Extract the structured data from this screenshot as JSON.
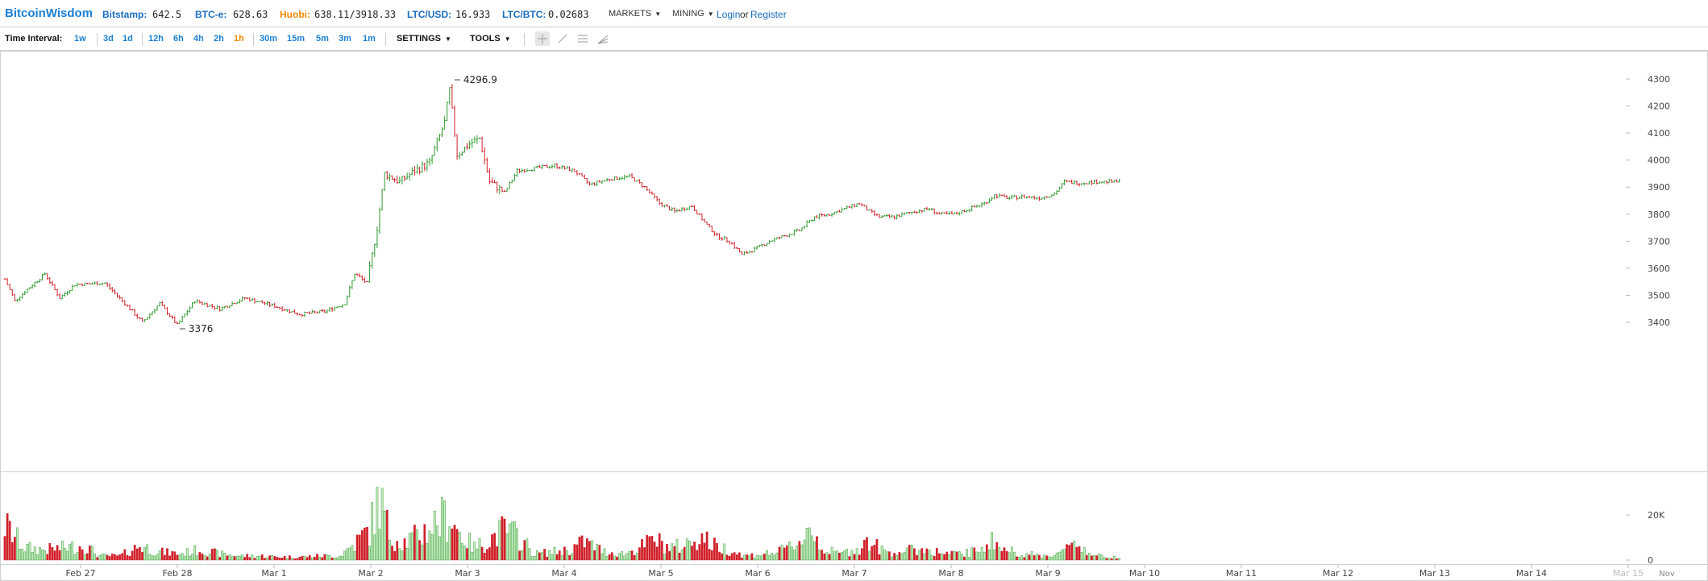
{
  "header": {
    "brand": "BitcoinWisdom",
    "tickers": [
      {
        "label": "Bitstamp:",
        "value": "642.5",
        "color": "#1a6dc0"
      },
      {
        "label": "BTC-e:",
        "value": "628.63",
        "color": "#1a6dc0"
      },
      {
        "label": "Huobi:",
        "value": "638.11/3918.33",
        "color": "#f08a00"
      },
      {
        "label": "LTC/USD:",
        "value": "16.933",
        "color": "#1a6dc0"
      },
      {
        "label": "LTC/BTC:",
        "value": "0.02683",
        "color": "#1a6dc0"
      }
    ],
    "menus": [
      "MARKETS",
      "MINING"
    ],
    "login": "Login",
    "or": "or",
    "register": "Register"
  },
  "toolbar": {
    "label": "Time Interval:",
    "intervals": [
      "1w",
      "3d",
      "1d",
      "12h",
      "6h",
      "4h",
      "2h",
      "1h",
      "30m",
      "15m",
      "5m",
      "3m",
      "1m"
    ],
    "active_interval": "1h",
    "settings": "SETTINGS",
    "tools": "TOOLS",
    "tool_icons": [
      "crosshair-icon",
      "line-tool-icon",
      "parallel-lines-icon",
      "fan-tool-icon"
    ]
  },
  "chart_data": {
    "type": "candlestick",
    "y_ticks": [
      "4300",
      "4200",
      "4100",
      "4000",
      "3900",
      "3800",
      "3700",
      "3600",
      "3500",
      "3400"
    ],
    "ylim": [
      3300,
      4330
    ],
    "volume_ticks": [
      "20K",
      "0"
    ],
    "volume_max": 36000,
    "x_labels": [
      "Feb 27",
      "Feb 28",
      "Mar 1",
      "Mar 2",
      "Mar 3",
      "Mar 4",
      "Mar 5",
      "Mar 6",
      "Mar 7",
      "Mar 8",
      "Mar 9",
      "Mar 10",
      "Mar 11",
      "Mar 12",
      "Mar 13",
      "Mar 14",
      "Mar 15"
    ],
    "x_label_extra": "Nov",
    "high_label": "4296.9",
    "low_label": "3376",
    "anchors": [
      [
        0,
        3560
      ],
      [
        4,
        3480
      ],
      [
        10,
        3530
      ],
      [
        16,
        3580
      ],
      [
        22,
        3490
      ],
      [
        28,
        3540
      ],
      [
        40,
        3545
      ],
      [
        48,
        3470
      ],
      [
        55,
        3400
      ],
      [
        62,
        3470
      ],
      [
        69,
        3390
      ],
      [
        76,
        3480
      ],
      [
        86,
        3450
      ],
      [
        96,
        3490
      ],
      [
        108,
        3460
      ],
      [
        118,
        3430
      ],
      [
        128,
        3440
      ],
      [
        136,
        3470
      ],
      [
        140,
        3580
      ],
      [
        145,
        3545
      ],
      [
        149,
        3750
      ],
      [
        152,
        3950
      ],
      [
        158,
        3920
      ],
      [
        164,
        3960
      ],
      [
        170,
        3990
      ],
      [
        176,
        4140
      ],
      [
        178,
        4260
      ],
      [
        181,
        4020
      ],
      [
        186,
        4060
      ],
      [
        190,
        4080
      ],
      [
        194,
        3920
      ],
      [
        200,
        3880
      ],
      [
        205,
        3960
      ],
      [
        212,
        3970
      ],
      [
        220,
        3980
      ],
      [
        228,
        3960
      ],
      [
        234,
        3910
      ],
      [
        242,
        3930
      ],
      [
        250,
        3940
      ],
      [
        256,
        3900
      ],
      [
        262,
        3840
      ],
      [
        268,
        3810
      ],
      [
        275,
        3830
      ],
      [
        280,
        3770
      ],
      [
        285,
        3720
      ],
      [
        290,
        3700
      ],
      [
        295,
        3650
      ],
      [
        300,
        3670
      ],
      [
        306,
        3700
      ],
      [
        312,
        3720
      ],
      [
        318,
        3740
      ],
      [
        324,
        3790
      ],
      [
        330,
        3800
      ],
      [
        336,
        3820
      ],
      [
        342,
        3840
      ],
      [
        346,
        3810
      ],
      [
        350,
        3790
      ],
      [
        356,
        3790
      ],
      [
        364,
        3810
      ],
      [
        370,
        3820
      ],
      [
        374,
        3800
      ],
      [
        380,
        3800
      ],
      [
        386,
        3820
      ],
      [
        392,
        3840
      ],
      [
        396,
        3870
      ],
      [
        402,
        3860
      ],
      [
        408,
        3865
      ],
      [
        414,
        3860
      ],
      [
        420,
        3875
      ],
      [
        424,
        3920
      ],
      [
        430,
        3915
      ],
      [
        436,
        3920
      ],
      [
        446,
        3920
      ]
    ],
    "volume_anchors": [
      [
        0,
        17000
      ],
      [
        8,
        6000
      ],
      [
        16,
        5000
      ],
      [
        24,
        6000
      ],
      [
        32,
        7000
      ],
      [
        38,
        2000
      ],
      [
        46,
        2000
      ],
      [
        54,
        7000
      ],
      [
        62,
        4000
      ],
      [
        70,
        3000
      ],
      [
        78,
        5000
      ],
      [
        86,
        3000
      ],
      [
        94,
        2000
      ],
      [
        102,
        2000
      ],
      [
        110,
        1500
      ],
      [
        118,
        1500
      ],
      [
        126,
        2000
      ],
      [
        134,
        2000
      ],
      [
        140,
        8000
      ],
      [
        146,
        15000
      ],
      [
        150,
        30000
      ],
      [
        154,
        12000
      ],
      [
        160,
        9000
      ],
      [
        166,
        12000
      ],
      [
        172,
        18000
      ],
      [
        178,
        22000
      ],
      [
        182,
        13000
      ],
      [
        188,
        6000
      ],
      [
        194,
        10000
      ],
      [
        200,
        15000
      ],
      [
        206,
        11000
      ],
      [
        212,
        3000
      ],
      [
        220,
        4000
      ],
      [
        226,
        5000
      ],
      [
        232,
        9000
      ],
      [
        240,
        4000
      ],
      [
        248,
        3000
      ],
      [
        254,
        6000
      ],
      [
        260,
        10000
      ],
      [
        266,
        6000
      ],
      [
        272,
        7000
      ],
      [
        278,
        12000
      ],
      [
        284,
        7000
      ],
      [
        290,
        5000
      ],
      [
        296,
        2000
      ],
      [
        304,
        3000
      ],
      [
        310,
        4000
      ],
      [
        318,
        9000
      ],
      [
        322,
        16000
      ],
      [
        328,
        5000
      ],
      [
        334,
        3000
      ],
      [
        340,
        5000
      ],
      [
        346,
        9000
      ],
      [
        352,
        4000
      ],
      [
        358,
        4000
      ],
      [
        364,
        5000
      ],
      [
        370,
        5000
      ],
      [
        376,
        3000
      ],
      [
        382,
        3000
      ],
      [
        388,
        4000
      ],
      [
        394,
        10000
      ],
      [
        400,
        5000
      ],
      [
        408,
        3000
      ],
      [
        416,
        2000
      ],
      [
        424,
        4000
      ],
      [
        428,
        10000
      ],
      [
        434,
        3000
      ],
      [
        440,
        1500
      ],
      [
        446,
        1500
      ]
    ]
  }
}
